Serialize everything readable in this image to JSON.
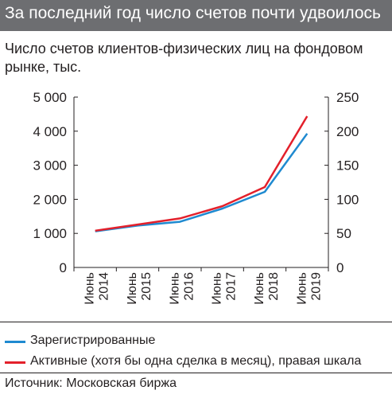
{
  "header": {
    "title": "За последний год число счетов почти удвоилось"
  },
  "subtitle": "Число счетов клиентов-физических лиц на фондовом рынке, тыс.",
  "legend": {
    "items": [
      {
        "label": "Зарегистрированные",
        "color": "#1f8ad0"
      },
      {
        "label": "Активные (хотя бы одна сделка в месяц), правая шкала",
        "color": "#e3202b"
      }
    ]
  },
  "source": "Источник: Московская биржа",
  "chart_data": {
    "type": "line",
    "title": "Число счетов клиентов-физических лиц на фондовом рынке, тыс.",
    "x": [
      "Июнь 2014",
      "Июнь 2015",
      "Июнь 2016",
      "Июнь 2017",
      "Июнь 2018",
      "Июнь 2019"
    ],
    "left_axis": {
      "ylim": [
        0,
        5000
      ],
      "ticks": [
        "0",
        "1 000",
        "2 000",
        "3 000",
        "4 000",
        "5 000"
      ]
    },
    "right_axis": {
      "ylim": [
        0,
        250
      ],
      "ticks": [
        "0",
        "50",
        "100",
        "150",
        "200",
        "250"
      ]
    },
    "series": [
      {
        "name": "Зарегистрированные",
        "axis": "left",
        "color": "#1f8ad0",
        "values": [
          1060,
          1230,
          1340,
          1730,
          2220,
          3930
        ]
      },
      {
        "name": "Активные (хотя бы одна сделка в месяц), правая шкала",
        "axis": "right",
        "color": "#e3202b",
        "values": [
          54,
          63,
          72,
          90,
          118,
          222
        ]
      }
    ],
    "grid": false,
    "legend_placement": "bottom"
  }
}
